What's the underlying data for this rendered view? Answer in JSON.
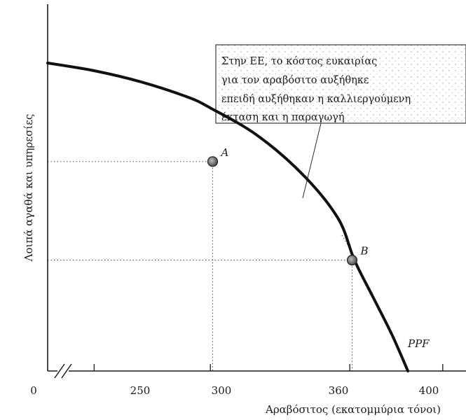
{
  "chart_data": {
    "type": "line",
    "title": "",
    "xlabel": "Αραβόσιτος (εκατομμύρια τόνοι)",
    "ylabel": "Λοιπά αγαθά και υπηρεσίες",
    "x_axis_break": true,
    "x_ticks": [
      "0",
      "250",
      "300",
      "360",
      "400"
    ],
    "x_ticks_values": [
      null,
      250,
      300,
      360,
      400
    ],
    "xlim": [
      230,
      410
    ],
    "ylim": [
      0,
      100
    ],
    "series": [
      {
        "name": "PPF",
        "x": [
          230,
          250,
          270,
          290,
          300,
          320,
          340,
          355,
          362,
          370,
          378,
          385
        ],
        "y": [
          100,
          97.5,
          93.9,
          89.0,
          85.4,
          76.6,
          63.6,
          49.5,
          36.0,
          24.0,
          12.0,
          0
        ]
      }
    ],
    "points": [
      {
        "label": "A",
        "x": 301,
        "y": 68
      },
      {
        "label": "B",
        "x": 361,
        "y": 36
      }
    ],
    "annotation": {
      "lines": [
        "Στην ΕΕ, το κόστος ευκαιρίας",
        "για τον αραβόσιτο αυξήθηκε",
        "επειδή αυξήθηκαν η καλλιεργούμενη",
        "έκταση και η παραγωγή"
      ]
    }
  }
}
